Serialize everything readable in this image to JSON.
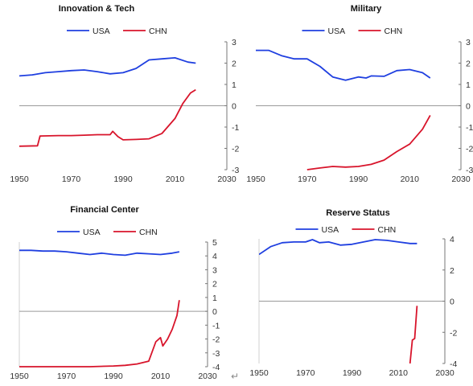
{
  "chart_data": [
    {
      "type": "line",
      "title": "Innovation & Tech",
      "xlim": [
        1950,
        2030
      ],
      "ylim": [
        -3,
        3
      ],
      "x_ticks": [
        "1950",
        "1970",
        "1990",
        "2010",
        "2030"
      ],
      "y_ticks": [
        "3",
        "2",
        "1",
        "0",
        "-1",
        "-2",
        "-3"
      ],
      "legend": "top-center",
      "series": [
        {
          "name": "USA",
          "color": "#1f3fe0",
          "x": [
            1950,
            1955,
            1960,
            1965,
            1970,
            1975,
            1980,
            1985,
            1990,
            1995,
            2000,
            2005,
            2010,
            2015,
            2018
          ],
          "y": [
            1.4,
            1.45,
            1.55,
            1.6,
            1.65,
            1.68,
            1.6,
            1.5,
            1.55,
            1.75,
            2.15,
            2.2,
            2.25,
            2.05,
            2.0
          ]
        },
        {
          "name": "CHN",
          "color": "#d8142b",
          "x": [
            1950,
            1957,
            1958,
            1965,
            1970,
            1975,
            1980,
            1985,
            1986,
            1988,
            1990,
            1995,
            2000,
            2005,
            2010,
            2013,
            2016,
            2018
          ],
          "y": [
            -1.9,
            -1.88,
            -1.42,
            -1.4,
            -1.4,
            -1.38,
            -1.36,
            -1.36,
            -1.2,
            -1.45,
            -1.6,
            -1.58,
            -1.55,
            -1.3,
            -0.6,
            0.1,
            0.6,
            0.75
          ]
        }
      ]
    },
    {
      "type": "line",
      "title": "Military",
      "xlim": [
        1950,
        2030
      ],
      "ylim": [
        -3,
        3
      ],
      "x_ticks": [
        "1950",
        "1970",
        "1990",
        "2010",
        "2030"
      ],
      "y_ticks": [
        "3",
        "2",
        "1",
        "0",
        "-1",
        "-2",
        "-3"
      ],
      "legend": "top-center",
      "series": [
        {
          "name": "USA",
          "color": "#1f3fe0",
          "x": [
            1950,
            1955,
            1960,
            1965,
            1970,
            1975,
            1980,
            1985,
            1990,
            1993,
            1995,
            2000,
            2005,
            2010,
            2015,
            2018
          ],
          "y": [
            2.6,
            2.6,
            2.35,
            2.2,
            2.2,
            1.85,
            1.35,
            1.2,
            1.35,
            1.3,
            1.4,
            1.38,
            1.65,
            1.7,
            1.55,
            1.3
          ]
        },
        {
          "name": "CHN",
          "color": "#d8142b",
          "x": [
            1970,
            1975,
            1980,
            1985,
            1990,
            1995,
            2000,
            2005,
            2010,
            2015,
            2018
          ],
          "y": [
            -3.0,
            -2.92,
            -2.85,
            -2.88,
            -2.85,
            -2.75,
            -2.55,
            -2.15,
            -1.8,
            -1.1,
            -0.45
          ]
        }
      ]
    },
    {
      "type": "line",
      "title": "Financial Center",
      "xlim": [
        1950,
        2030
      ],
      "ylim": [
        -4,
        5
      ],
      "x_ticks": [
        "1950",
        "1970",
        "1990",
        "2010",
        "2030"
      ],
      "y_ticks": [
        "5",
        "4",
        "3",
        "2",
        "1",
        "0",
        "-1",
        "-2",
        "-3",
        "-4"
      ],
      "legend": "top-center",
      "series": [
        {
          "name": "USA",
          "color": "#1f3fe0",
          "x": [
            1950,
            1955,
            1960,
            1965,
            1970,
            1975,
            1980,
            1985,
            1990,
            1995,
            2000,
            2005,
            2010,
            2015,
            2018
          ],
          "y": [
            4.4,
            4.4,
            4.35,
            4.35,
            4.3,
            4.2,
            4.1,
            4.2,
            4.1,
            4.05,
            4.2,
            4.15,
            4.1,
            4.2,
            4.3
          ]
        },
        {
          "name": "CHN",
          "color": "#d8142b",
          "x": [
            1950,
            1960,
            1970,
            1980,
            1990,
            1995,
            2000,
            2005,
            2008,
            2010,
            2011,
            2013,
            2015,
            2017,
            2018
          ],
          "y": [
            -4.0,
            -4.0,
            -4.0,
            -4.0,
            -3.95,
            -3.9,
            -3.8,
            -3.6,
            -2.2,
            -1.9,
            -2.5,
            -2.0,
            -1.3,
            -0.3,
            0.8
          ]
        }
      ]
    },
    {
      "type": "line",
      "title": "Reserve Status",
      "xlim": [
        1950,
        2030
      ],
      "ylim": [
        -4,
        4
      ],
      "x_ticks": [
        "1950",
        "1970",
        "1990",
        "2010",
        "2030"
      ],
      "y_ticks": [
        "4",
        "2",
        "0",
        "-2",
        "-4"
      ],
      "legend": "top-center",
      "series": [
        {
          "name": "USA",
          "color": "#1f3fe0",
          "x": [
            1950,
            1955,
            1960,
            1965,
            1970,
            1973,
            1976,
            1980,
            1985,
            1990,
            1995,
            2000,
            2005,
            2010,
            2015,
            2018
          ],
          "y": [
            3.0,
            3.5,
            3.75,
            3.8,
            3.8,
            3.95,
            3.75,
            3.8,
            3.6,
            3.65,
            3.8,
            3.95,
            3.9,
            3.8,
            3.7,
            3.7
          ]
        },
        {
          "name": "CHN",
          "color": "#d8142b",
          "x": [
            2015,
            2016,
            2017,
            2018
          ],
          "y": [
            -4.0,
            -2.5,
            -2.4,
            -0.3
          ]
        }
      ]
    }
  ]
}
